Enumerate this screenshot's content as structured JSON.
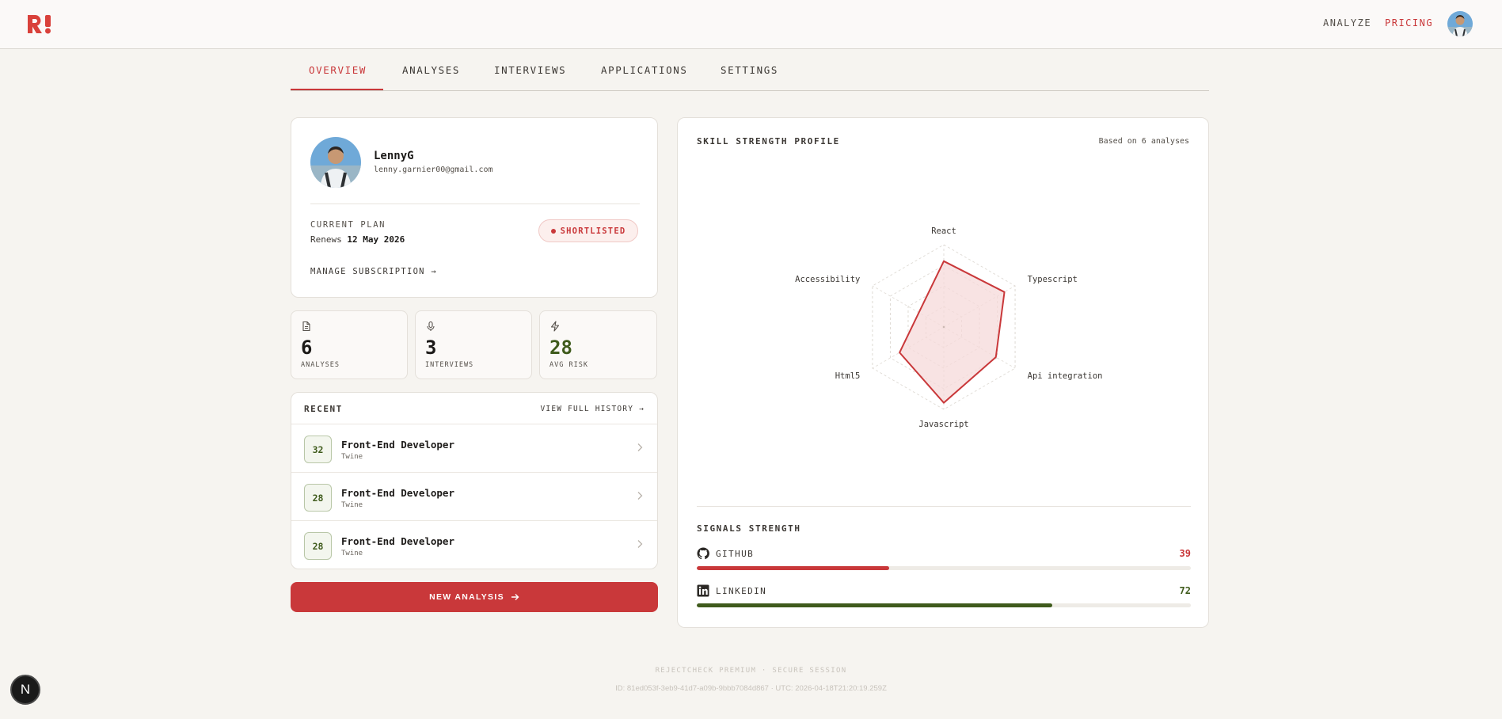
{
  "topbar": {
    "logo_icon": "brand-logo-icon",
    "nav": [
      {
        "label": "ANALYZE",
        "color": "#55504a"
      },
      {
        "label": "PRICING",
        "color": "#c9383a"
      }
    ]
  },
  "tabs": [
    "OVERVIEW",
    "ANALYSES",
    "INTERVIEWS",
    "APPLICATIONS",
    "SETTINGS"
  ],
  "active_tab": "OVERVIEW",
  "profile": {
    "name": "LennyG",
    "email": "lenny.garnier00@gmail.com",
    "plan_label": "CURRENT PLAN",
    "renews_prefix": "Renews",
    "renews_date": "12 May 2026",
    "badge": "SHORTLISTED",
    "manage_label": "MANAGE SUBSCRIPTION →"
  },
  "stats": [
    {
      "icon": "document-icon",
      "value": "6",
      "label": "ANALYSES",
      "color": "#1c1a18"
    },
    {
      "icon": "microphone-icon",
      "value": "3",
      "label": "INTERVIEWS",
      "color": "#1c1a18"
    },
    {
      "icon": "lightning-icon",
      "value": "28",
      "label": "AVG RISK",
      "color": "#3f5b1c"
    }
  ],
  "recent": {
    "title": "RECENT",
    "history_label": "VIEW FULL HISTORY →",
    "items": [
      {
        "score": "32",
        "title": "Front-End Developer",
        "company": "Twine"
      },
      {
        "score": "28",
        "title": "Front-End Developer",
        "company": "Twine"
      },
      {
        "score": "28",
        "title": "Front-End Developer",
        "company": "Twine"
      }
    ]
  },
  "new_analysis_label": "NEW ANALYSIS",
  "skill_profile": {
    "title": "SKILL STRENGTH PROFILE",
    "based_on": "Based on 6 analyses"
  },
  "chart_data": {
    "type": "radar",
    "categories": [
      "React",
      "Typescript",
      "Api integration",
      "Javascript",
      "Html5",
      "Accessibility"
    ],
    "values": [
      80,
      85,
      73,
      92,
      62,
      35
    ],
    "max": 100,
    "rings": 4,
    "fill_color": "#f6d9d9",
    "line_color": "#c9383a"
  },
  "signals": {
    "title": "SIGNALS STRENGTH",
    "items": [
      {
        "icon": "github-icon",
        "name": "GITHUB",
        "value": 39,
        "color": "#c9383a"
      },
      {
        "icon": "linkedin-icon",
        "name": "LINKEDIN",
        "value": 72,
        "color": "#3f5b1c"
      }
    ]
  },
  "footer": {
    "line1": "REJECTCHECK PREMIUM · SECURE SESSION",
    "line2": "ID: 81ed053f-3eb9-41d7-a09b-9bbb7084d867 · UTC: 2026-04-18T21:20:19.259Z"
  },
  "dev_badge": "N"
}
